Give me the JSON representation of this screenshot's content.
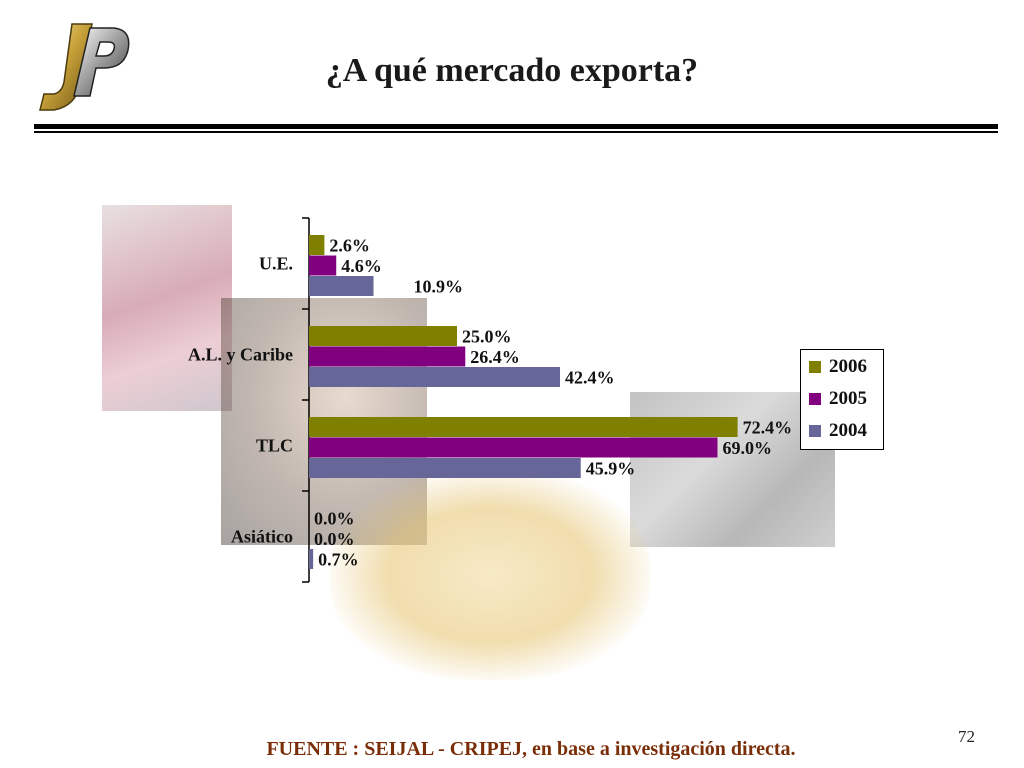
{
  "title": "¿A qué mercado exporta?",
  "logo_text": "JP",
  "source": "FUENTE :  SEIJAL - CRIPEJ,  en base a investigación directa.",
  "page_number": "72",
  "chart_data": {
    "type": "bar",
    "orientation": "horizontal",
    "categories": [
      "U.E.",
      "A.L. y Caribe",
      "TLC",
      "Asiático"
    ],
    "series": [
      {
        "name": "2006",
        "color": "#808000",
        "values": [
          2.6,
          25.0,
          72.4,
          0.0
        ]
      },
      {
        "name": "2005",
        "color": "#800080",
        "values": [
          4.6,
          26.4,
          69.0,
          0.0
        ]
      },
      {
        "name": "2004",
        "color": "#666699",
        "values": [
          10.9,
          42.4,
          45.9,
          0.7
        ]
      }
    ],
    "value_labels": [
      [
        "2.6%",
        "25.0%",
        "72.4%",
        "0.0%"
      ],
      [
        "4.6%",
        "26.4%",
        "69.0%",
        "0.0%"
      ],
      [
        "10.9%",
        "42.4%",
        "45.9%",
        "0.7%"
      ]
    ],
    "xlim": [
      0,
      80
    ],
    "legend_position": "right",
    "grid": false
  }
}
